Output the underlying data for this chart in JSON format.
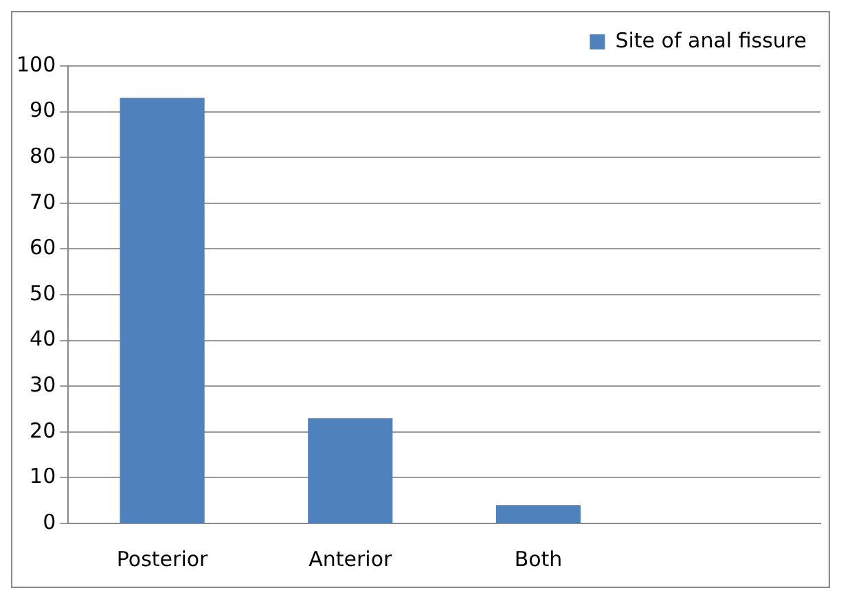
{
  "chart_data": {
    "type": "bar",
    "categories": [
      "Posterior",
      "Anterior",
      "Both",
      null
    ],
    "series": [
      {
        "name": "Site of anal fissure",
        "color": "#4f81bd",
        "values": [
          93,
          23,
          4,
          null
        ]
      }
    ],
    "ylim": [
      0,
      100
    ],
    "yticks": [
      0,
      10,
      20,
      30,
      40,
      50,
      60,
      70,
      80,
      90,
      100
    ],
    "grid": "y",
    "legend": "top right"
  }
}
